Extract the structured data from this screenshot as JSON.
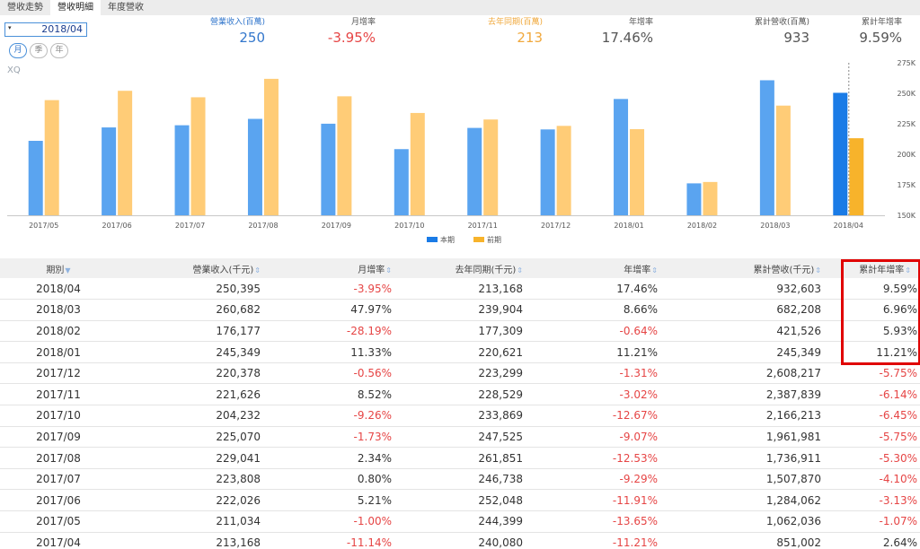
{
  "tabs": [
    {
      "label": "營收走勢",
      "active": false
    },
    {
      "label": "營收明細",
      "active": true
    },
    {
      "label": "年度營收",
      "active": false
    }
  ],
  "date_picker": {
    "value": "2018/04",
    "caret": "▾"
  },
  "period_buttons": [
    {
      "label": "月",
      "active": true
    },
    {
      "label": "季",
      "active": false
    },
    {
      "label": "年",
      "active": false
    }
  ],
  "logo": "XQ",
  "stats": [
    {
      "label": "營業收入(百萬)",
      "value": "250",
      "label_color": "#3377cc",
      "value_color": "#3377cc"
    },
    {
      "label": "月增率",
      "value": "-3.95%",
      "label_color": "#555555",
      "value_color": "#e64545"
    },
    {
      "label": "去年同期(百萬)",
      "value": "213",
      "label_color": "#f0a83c",
      "value_color": "#f0a83c"
    },
    {
      "label": "年增率",
      "value": "17.46%",
      "label_color": "#555555",
      "value_color": "#555555"
    },
    {
      "label": "累計營收(百萬)",
      "value": "933",
      "label_color": "#555555",
      "value_color": "#555555"
    },
    {
      "label": "累計年增率",
      "value": "9.59%",
      "label_color": "#555555",
      "value_color": "#555555"
    }
  ],
  "chart_data": {
    "type": "bar",
    "categories": [
      "2017/05",
      "2017/06",
      "2017/07",
      "2017/08",
      "2017/09",
      "2017/10",
      "2017/11",
      "2017/12",
      "2018/01",
      "2018/02",
      "2018/03",
      "2018/04"
    ],
    "series": [
      {
        "name": "本期",
        "color": "#5aa4f0",
        "highlight_color": "#1a7be6",
        "values": [
          211034,
          222026,
          223808,
          229041,
          225070,
          204232,
          221626,
          220378,
          245349,
          176177,
          260682,
          250395
        ]
      },
      {
        "name": "前期",
        "color": "#ffcc77",
        "highlight_color": "#f7b32b",
        "values": [
          244399,
          252048,
          246738,
          261851,
          247525,
          233869,
          228529,
          223299,
          220621,
          177309,
          239904,
          213168
        ]
      }
    ],
    "y_ticks": [
      150000,
      175000,
      200000,
      225000,
      250000,
      275000
    ],
    "y_tick_labels": [
      "150K",
      "175K",
      "200K",
      "225K",
      "250K",
      "275K"
    ],
    "ylim": [
      150000,
      275000
    ],
    "legend": [
      "本期",
      "前期"
    ],
    "highlight_index": 11,
    "grid": false
  },
  "table": {
    "headers": [
      "期別",
      "營業收入(千元)",
      "月增率",
      "去年同期(千元)",
      "年增率",
      "累計營收(千元)",
      "累計年增率"
    ],
    "sort_icons": [
      "▼",
      "⇕",
      "⇕",
      "⇕",
      "⇕",
      "⇕",
      "⇕"
    ],
    "rows": [
      [
        "2018/04",
        "250,395",
        "-3.95%",
        "213,168",
        "17.46%",
        "932,603",
        "9.59%"
      ],
      [
        "2018/03",
        "260,682",
        "47.97%",
        "239,904",
        "8.66%",
        "682,208",
        "6.96%"
      ],
      [
        "2018/02",
        "176,177",
        "-28.19%",
        "177,309",
        "-0.64%",
        "421,526",
        "5.93%"
      ],
      [
        "2018/01",
        "245,349",
        "11.33%",
        "220,621",
        "11.21%",
        "245,349",
        "11.21%"
      ],
      [
        "2017/12",
        "220,378",
        "-0.56%",
        "223,299",
        "-1.31%",
        "2,608,217",
        "-5.75%"
      ],
      [
        "2017/11",
        "221,626",
        "8.52%",
        "228,529",
        "-3.02%",
        "2,387,839",
        "-6.14%"
      ],
      [
        "2017/10",
        "204,232",
        "-9.26%",
        "233,869",
        "-12.67%",
        "2,166,213",
        "-6.45%"
      ],
      [
        "2017/09",
        "225,070",
        "-1.73%",
        "247,525",
        "-9.07%",
        "1,961,981",
        "-5.75%"
      ],
      [
        "2017/08",
        "229,041",
        "2.34%",
        "261,851",
        "-12.53%",
        "1,736,911",
        "-5.30%"
      ],
      [
        "2017/07",
        "223,808",
        "0.80%",
        "246,738",
        "-9.29%",
        "1,507,870",
        "-4.10%"
      ],
      [
        "2017/06",
        "222,026",
        "5.21%",
        "252,048",
        "-11.91%",
        "1,284,062",
        "-3.13%"
      ],
      [
        "2017/05",
        "211,034",
        "-1.00%",
        "244,399",
        "-13.65%",
        "1,062,036",
        "-1.07%"
      ],
      [
        "2017/04",
        "213,168",
        "-11.14%",
        "240,080",
        "-11.21%",
        "851,002",
        "2.64%"
      ]
    ]
  },
  "colors": {
    "negative": "#e64545",
    "accent": "#3377cc",
    "highlight_box": "#e00000"
  }
}
